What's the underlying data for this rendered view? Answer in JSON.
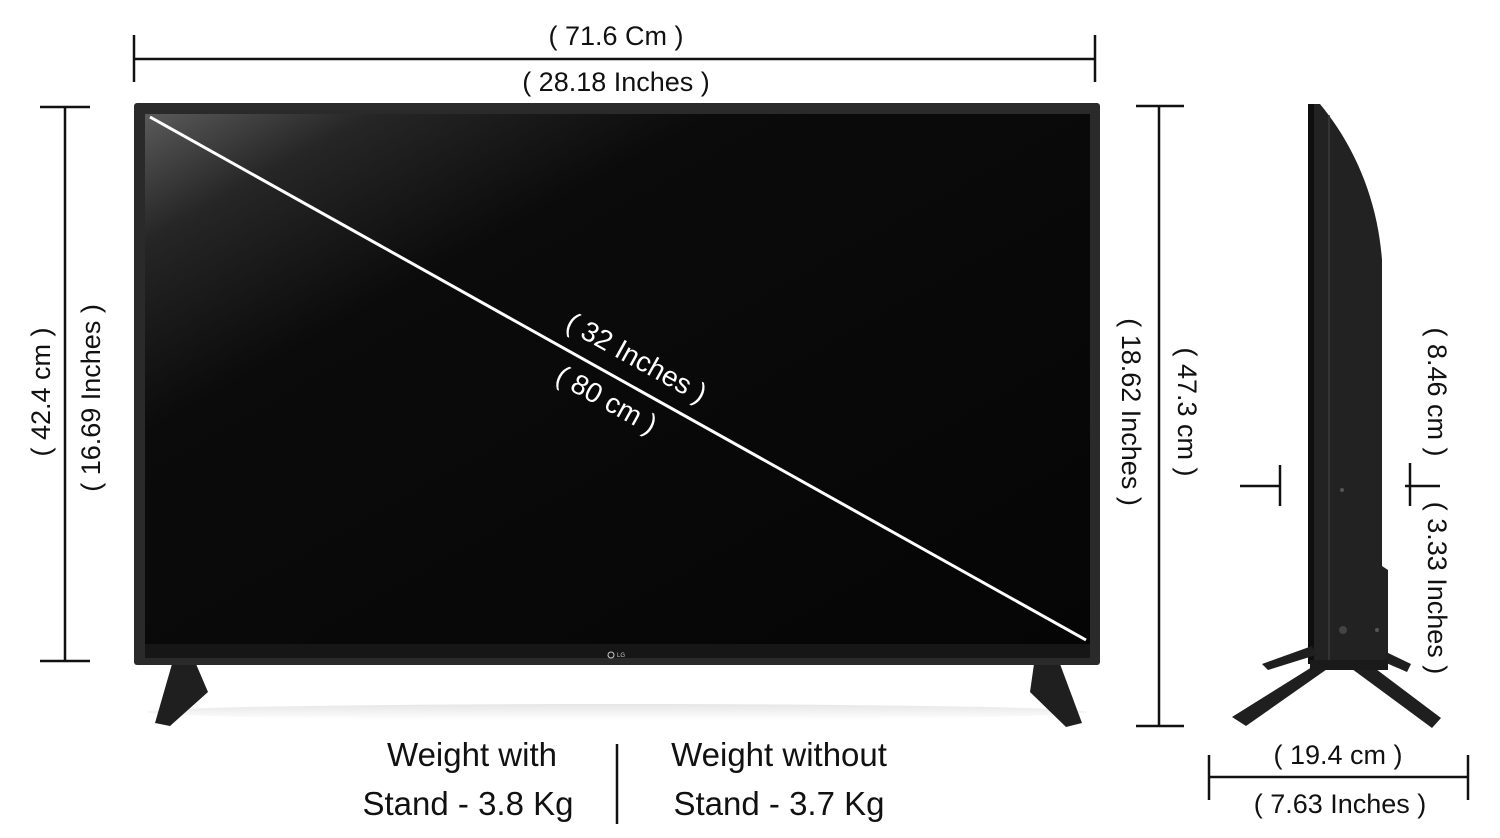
{
  "front": {
    "width_cm": "( 71.6 Cm )",
    "width_in": "( 28.18 Inches )",
    "height_cm": "( 42.4 cm )",
    "height_in": "( 16.69 Inches )",
    "diagonal_in": "( 32 Inches )",
    "diagonal_cm": "( 80 cm )",
    "brand": "LG"
  },
  "side": {
    "total_height_in": "( 18.62 Inches )",
    "total_height_cm": "( 47.3 cm )",
    "upper_cm": "( 8.46 cm )",
    "lower_in": "( 3.33 Inches )",
    "depth_cm": "( 19.4 cm )",
    "depth_in": "( 7.63 Inches )"
  },
  "weights": {
    "with_stand_line1": "Weight with",
    "with_stand_line2": "Stand - 3.8 Kg",
    "without_stand_line1": "Weight without",
    "without_stand_line2": "Stand -  3.7 Kg"
  },
  "colors": {
    "screen": "#050505",
    "bezel": "#2a2a2a",
    "stand": "#1f1f1f",
    "line": "#111111"
  }
}
